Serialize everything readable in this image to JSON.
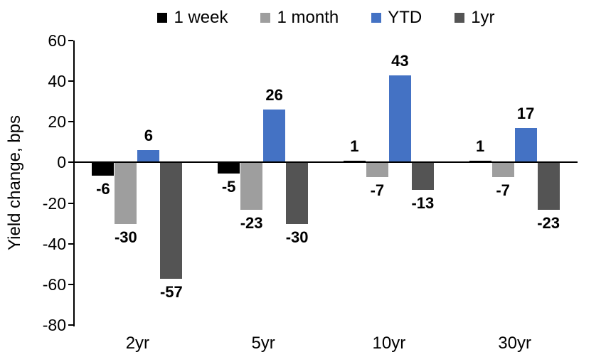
{
  "chart_data": {
    "type": "bar",
    "title": "",
    "xlabel": "",
    "ylabel": "Yield change, bps",
    "categories": [
      "2yr",
      "5yr",
      "10yr",
      "30yr"
    ],
    "series": [
      {
        "name": "1 week",
        "color": "#000000",
        "values": [
          -6,
          -5,
          1,
          1
        ]
      },
      {
        "name": "1 month",
        "color": "#9E9E9E",
        "values": [
          -30,
          -23,
          -7,
          -7
        ]
      },
      {
        "name": "YTD",
        "color": "#4472C4",
        "values": [
          6,
          26,
          43,
          17
        ]
      },
      {
        "name": "1yr",
        "color": "#545454",
        "values": [
          -57,
          -30,
          -13,
          -23
        ]
      }
    ],
    "ylim": [
      -80,
      60
    ],
    "yticks": [
      60,
      40,
      20,
      0,
      -20,
      -40,
      -60,
      -80
    ],
    "ytick_step": 20,
    "legend_position": "top",
    "grid": false,
    "data_labels": true,
    "axis_color": "#000000",
    "background_color": "#FFFFFF"
  }
}
